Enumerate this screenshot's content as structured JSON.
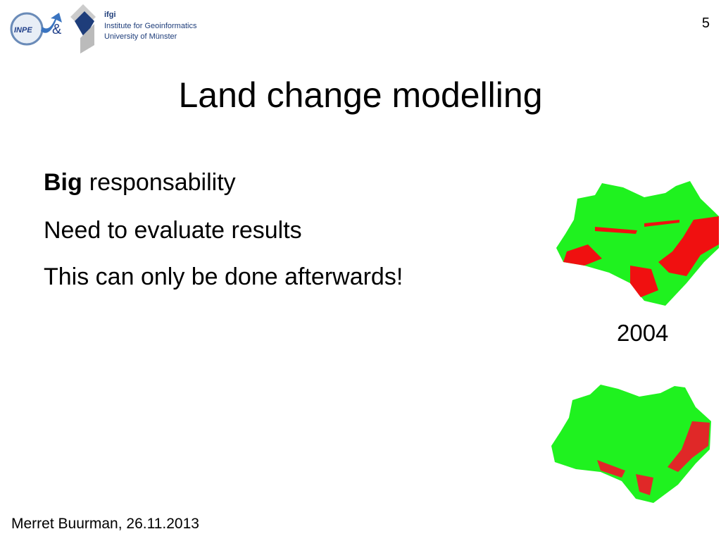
{
  "header": {
    "logo": {
      "inpe": "INPE",
      "ampersand": "&",
      "ifgi": "ifgi",
      "institute": "Institute for Geoinformatics",
      "university": "University of Münster"
    },
    "page_number": "5"
  },
  "title": "Land change modelling",
  "bullets": [
    {
      "bold": "Big",
      "text": "responsability"
    },
    {
      "text": "Need to evaluate results"
    },
    {
      "text": "This can only be done afterwards!"
    }
  ],
  "figure": {
    "caption": "2004"
  },
  "footer": "Merret Buurman, 26.11.2013"
}
